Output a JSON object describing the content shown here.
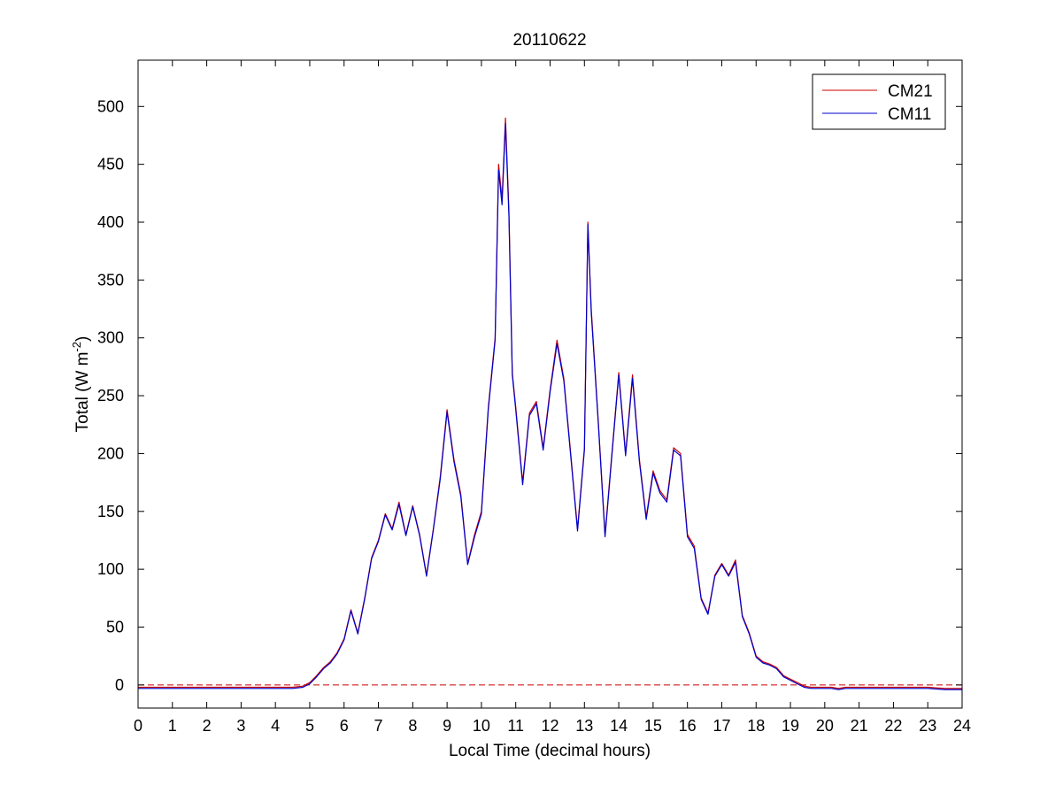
{
  "chart_data": {
    "type": "line",
    "title": "20110622",
    "xlabel": "Local Time (decimal hours)",
    "ylabel": {
      "main": "Total (W m",
      "superscript": "-2",
      "close": ")"
    },
    "xlim": [
      0,
      24
    ],
    "ylim": [
      -20,
      540
    ],
    "xticks": [
      0,
      1,
      2,
      3,
      4,
      5,
      6,
      7,
      8,
      9,
      10,
      11,
      12,
      13,
      14,
      15,
      16,
      17,
      18,
      19,
      20,
      21,
      22,
      23,
      24
    ],
    "xtick_labels": [
      "0",
      "1",
      "2",
      "3",
      "4",
      "5",
      "6",
      "7",
      "8",
      "9",
      "10",
      "11",
      "12",
      "13",
      "14",
      "15",
      "16",
      "17",
      "18",
      "19",
      "20",
      "21",
      "22",
      "23",
      "24"
    ],
    "yticks": [
      0,
      50,
      100,
      150,
      200,
      250,
      300,
      350,
      400,
      450,
      500
    ],
    "ytick_labels": [
      "0",
      "50",
      "100",
      "150",
      "200",
      "250",
      "300",
      "350",
      "400",
      "450",
      "500"
    ],
    "grid": false,
    "legend_position": "top-right",
    "reference_line": {
      "y": 0,
      "style": "dashed",
      "color": "#cc0000"
    },
    "x": [
      0,
      0.5,
      1,
      1.5,
      2,
      2.5,
      3,
      3.5,
      4,
      4.5,
      4.8,
      5.0,
      5.2,
      5.4,
      5.6,
      5.8,
      6.0,
      6.2,
      6.4,
      6.6,
      6.8,
      7.0,
      7.2,
      7.4,
      7.6,
      7.8,
      8.0,
      8.2,
      8.4,
      8.6,
      8.8,
      9.0,
      9.2,
      9.4,
      9.6,
      9.8,
      10.0,
      10.2,
      10.4,
      10.5,
      10.6,
      10.7,
      10.8,
      10.9,
      11.0,
      11.2,
      11.4,
      11.6,
      11.8,
      12.0,
      12.2,
      12.4,
      12.6,
      12.8,
      13.0,
      13.1,
      13.2,
      13.4,
      13.6,
      13.8,
      14.0,
      14.2,
      14.4,
      14.6,
      14.8,
      15.0,
      15.2,
      15.4,
      15.6,
      15.8,
      16.0,
      16.2,
      16.4,
      16.6,
      16.8,
      17.0,
      17.2,
      17.4,
      17.6,
      17.8,
      18.0,
      18.2,
      18.4,
      18.6,
      18.8,
      19.0,
      19.2,
      19.4,
      19.6,
      19.8,
      20.0,
      20.2,
      20.4,
      20.6,
      21.0,
      21.5,
      22.0,
      22.5,
      23.0,
      23.5,
      24.0
    ],
    "series": [
      {
        "name": "CM21",
        "color": "#cc0000",
        "values": [
          -2,
          -2,
          -2,
          -2,
          -2,
          -2,
          -2,
          -2,
          -2,
          -2,
          -1,
          2,
          8,
          15,
          20,
          28,
          40,
          65,
          45,
          75,
          110,
          125,
          148,
          135,
          158,
          130,
          155,
          130,
          95,
          135,
          180,
          238,
          195,
          165,
          105,
          130,
          150,
          240,
          300,
          450,
          420,
          490,
          410,
          270,
          240,
          175,
          235,
          245,
          205,
          255,
          298,
          265,
          200,
          135,
          205,
          400,
          325,
          230,
          130,
          200,
          270,
          200,
          268,
          195,
          145,
          185,
          168,
          160,
          205,
          200,
          130,
          120,
          75,
          62,
          95,
          105,
          95,
          108,
          60,
          45,
          25,
          20,
          18,
          15,
          8,
          5,
          2,
          -1,
          -2,
          -2,
          -2,
          -2,
          -3,
          -2,
          -2,
          -2,
          -2,
          -2,
          -2,
          -3,
          -3
        ]
      },
      {
        "name": "CM11",
        "color": "#0000cc",
        "values": [
          -3,
          -3,
          -3,
          -3,
          -3,
          -3,
          -3,
          -3,
          -3,
          -3,
          -2,
          1,
          7,
          14,
          19,
          27,
          39,
          64,
          44,
          74,
          109,
          124,
          147,
          134,
          156,
          129,
          154,
          129,
          94,
          134,
          178,
          236,
          193,
          163,
          104,
          128,
          148,
          238,
          298,
          445,
          415,
          485,
          405,
          268,
          238,
          173,
          233,
          243,
          203,
          253,
          295,
          263,
          198,
          133,
          203,
          398,
          322,
          228,
          128,
          198,
          268,
          198,
          265,
          193,
          143,
          183,
          166,
          158,
          203,
          198,
          128,
          118,
          74,
          61,
          94,
          104,
          94,
          106,
          59,
          44,
          24,
          19,
          17,
          14,
          7,
          4,
          1,
          -2,
          -3,
          -3,
          -3,
          -3,
          -4,
          -3,
          -3,
          -3,
          -3,
          -3,
          -3,
          -4,
          -4
        ]
      }
    ]
  }
}
